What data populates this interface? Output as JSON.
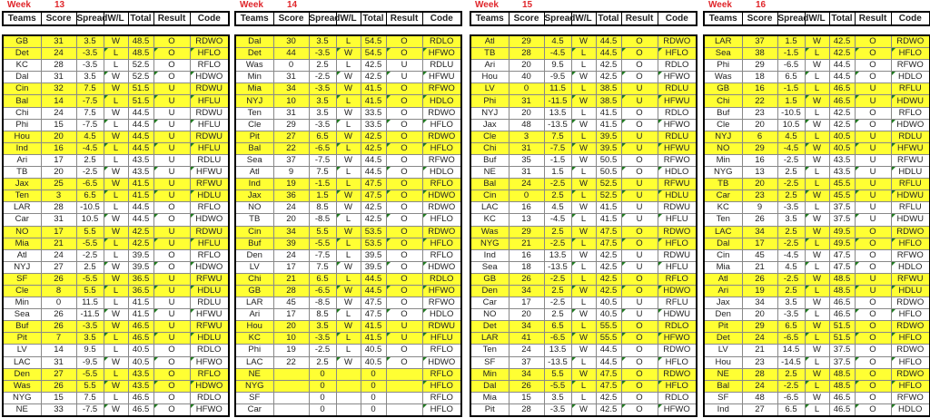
{
  "columns": [
    "Teams",
    "Score",
    "Spread",
    "W/L",
    "Total",
    "Result",
    "Code"
  ],
  "week_label": "Week",
  "highlight_color": "#ffff33",
  "header_label_color": "#e0262b",
  "weeks": [
    {
      "number": "13",
      "rows": [
        [
          "GB",
          "31",
          "3.5",
          "W",
          "48.5",
          "O",
          "RDWO"
        ],
        [
          "Det",
          "24",
          "-3.5",
          "L",
          "48.5",
          "O",
          "HFLO"
        ],
        [
          "KC",
          "28",
          "-3.5",
          "L",
          "52.5",
          "O",
          "RFLO"
        ],
        [
          "Dal",
          "31",
          "3.5",
          "W",
          "52.5",
          "O",
          "HDWO"
        ],
        [
          "Cin",
          "32",
          "7.5",
          "W",
          "51.5",
          "U",
          "RDWU"
        ],
        [
          "Bal",
          "14",
          "-7.5",
          "L",
          "51.5",
          "U",
          "HFLU"
        ],
        [
          "Chi",
          "24",
          "7.5",
          "W",
          "44.5",
          "U",
          "RDWU"
        ],
        [
          "Phi",
          "15",
          "-7.5",
          "L",
          "44.5",
          "U",
          "HFLU"
        ],
        [
          "Hou",
          "20",
          "4.5",
          "W",
          "44.5",
          "U",
          "RDWU"
        ],
        [
          "Ind",
          "16",
          "-4.5",
          "L",
          "44.5",
          "U",
          "HFLU"
        ],
        [
          "Ari",
          "17",
          "2.5",
          "L",
          "43.5",
          "U",
          "RDLU"
        ],
        [
          "TB",
          "20",
          "-2.5",
          "W",
          "43.5",
          "U",
          "HFWU"
        ],
        [
          "Jax",
          "25",
          "-6.5",
          "W",
          "41.5",
          "U",
          "RFWU"
        ],
        [
          "Ten",
          "3",
          "6.5",
          "L",
          "41.5",
          "U",
          "HDLU"
        ],
        [
          "LAR",
          "28",
          "-10.5",
          "L",
          "44.5",
          "O",
          "RFLO"
        ],
        [
          "Car",
          "31",
          "10.5",
          "W",
          "44.5",
          "O",
          "HDWO"
        ],
        [
          "NO",
          "17",
          "5.5",
          "W",
          "42.5",
          "U",
          "RDWU"
        ],
        [
          "Mia",
          "21",
          "-5.5",
          "L",
          "42.5",
          "U",
          "HFLU"
        ],
        [
          "Atl",
          "24",
          "-2.5",
          "L",
          "39.5",
          "O",
          "RFLO"
        ],
        [
          "NYJ",
          "27",
          "2.5",
          "W",
          "39.5",
          "O",
          "HDWO"
        ],
        [
          "SF",
          "26",
          "-5.5",
          "W",
          "36.5",
          "U",
          "RFWU"
        ],
        [
          "Cle",
          "8",
          "5.5",
          "L",
          "36.5",
          "U",
          "HDLU"
        ],
        [
          "Min",
          "0",
          "11.5",
          "L",
          "41.5",
          "U",
          "RDLU"
        ],
        [
          "Sea",
          "26",
          "-11.5",
          "W",
          "41.5",
          "U",
          "HFWU"
        ],
        [
          "Buf",
          "26",
          "-3.5",
          "W",
          "46.5",
          "U",
          "RFWU"
        ],
        [
          "Pit",
          "7",
          "3.5",
          "L",
          "46.5",
          "U",
          "HDLU"
        ],
        [
          "LV",
          "14",
          "9.5",
          "L",
          "40.5",
          "O",
          "RDLO"
        ],
        [
          "LAC",
          "31",
          "-9.5",
          "W",
          "40.5",
          "O",
          "HFWO"
        ],
        [
          "Den",
          "27",
          "-5.5",
          "L",
          "43.5",
          "O",
          "RFLO"
        ],
        [
          "Was",
          "26",
          "5.5",
          "W",
          "43.5",
          "O",
          "HDWO"
        ],
        [
          "NYG",
          "15",
          "7.5",
          "L",
          "46.5",
          "O",
          "RDLO"
        ],
        [
          "NE",
          "33",
          "-7.5",
          "W",
          "46.5",
          "O",
          "HFWO"
        ]
      ]
    },
    {
      "number": "14",
      "rows": [
        [
          "Dal",
          "30",
          "3.5",
          "L",
          "54.5",
          "O",
          "RDLO"
        ],
        [
          "Det",
          "44",
          "-3.5",
          "W",
          "54.5",
          "O",
          "HFWO"
        ],
        [
          "Was",
          "0",
          "2.5",
          "L",
          "42.5",
          "U",
          "RDLU"
        ],
        [
          "Min",
          "31",
          "-2.5",
          "W",
          "42.5",
          "U",
          "HFWU"
        ],
        [
          "Mia",
          "34",
          "-3.5",
          "W",
          "41.5",
          "O",
          "RFWO"
        ],
        [
          "NYJ",
          "10",
          "3.5",
          "L",
          "41.5",
          "O",
          "HDLO"
        ],
        [
          "Ten",
          "31",
          "3.5",
          "W",
          "33.5",
          "O",
          "RDWO"
        ],
        [
          "Cle",
          "29",
          "-3.5",
          "L",
          "33.5",
          "O",
          "HFLO"
        ],
        [
          "Pit",
          "27",
          "6.5",
          "W",
          "42.5",
          "O",
          "RDWO"
        ],
        [
          "Bal",
          "22",
          "-6.5",
          "L",
          "42.5",
          "O",
          "HFLO"
        ],
        [
          "Sea",
          "37",
          "-7.5",
          "W",
          "44.5",
          "O",
          "RFWO"
        ],
        [
          "Atl",
          "9",
          "7.5",
          "L",
          "44.5",
          "O",
          "HDLO"
        ],
        [
          "Ind",
          "19",
          "-1.5",
          "L",
          "47.5",
          "O",
          "RFLO"
        ],
        [
          "Jax",
          "36",
          "1.5",
          "W",
          "47.5",
          "O",
          "HDWO"
        ],
        [
          "NO",
          "24",
          "8.5",
          "W",
          "42.5",
          "O",
          "RDWO"
        ],
        [
          "TB",
          "20",
          "-8.5",
          "L",
          "42.5",
          "O",
          "HFLO"
        ],
        [
          "Cin",
          "34",
          "5.5",
          "W",
          "53.5",
          "O",
          "RDWO"
        ],
        [
          "Buf",
          "39",
          "-5.5",
          "L",
          "53.5",
          "O",
          "HFLO"
        ],
        [
          "Den",
          "24",
          "-7.5",
          "L",
          "39.5",
          "O",
          "RFLO"
        ],
        [
          "LV",
          "17",
          "7.5",
          "W",
          "39.5",
          "O",
          "HDWO"
        ],
        [
          "Chi",
          "21",
          "6.5",
          "L",
          "44.5",
          "O",
          "RDLO"
        ],
        [
          "GB",
          "28",
          "-6.5",
          "W",
          "44.5",
          "O",
          "HFWO"
        ],
        [
          "LAR",
          "45",
          "-8.5",
          "W",
          "47.5",
          "O",
          "RFWO"
        ],
        [
          "Ari",
          "17",
          "8.5",
          "L",
          "47.5",
          "O",
          "HDLO"
        ],
        [
          "Hou",
          "20",
          "3.5",
          "W",
          "41.5",
          "U",
          "RDWU"
        ],
        [
          "KC",
          "10",
          "-3.5",
          "L",
          "41.5",
          "U",
          "HFLU"
        ],
        [
          "Phi",
          "19",
          "-2.5",
          "L",
          "40.5",
          "O",
          "RFLO"
        ],
        [
          "LAC",
          "22",
          "2.5",
          "W",
          "40.5",
          "O",
          "HDWO"
        ],
        [
          "NE",
          "",
          "0",
          "",
          "0",
          "",
          "RFLO"
        ],
        [
          "NYG",
          "",
          "0",
          "",
          "0",
          "",
          "HFLO"
        ],
        [
          "SF",
          "",
          "0",
          "",
          "0",
          "",
          "RFLO"
        ],
        [
          "Car",
          "",
          "0",
          "",
          "0",
          "",
          "HFLO"
        ]
      ]
    },
    {
      "number": "15",
      "rows": [
        [
          "Atl",
          "29",
          "4.5",
          "W",
          "44.5",
          "O",
          "RDWO"
        ],
        [
          "TB",
          "28",
          "-4.5",
          "L",
          "44.5",
          "O",
          "HFLO"
        ],
        [
          "Ari",
          "20",
          "9.5",
          "L",
          "42.5",
          "O",
          "RDLO"
        ],
        [
          "Hou",
          "40",
          "-9.5",
          "W",
          "42.5",
          "O",
          "HFWO"
        ],
        [
          "LV",
          "0",
          "11.5",
          "L",
          "38.5",
          "U",
          "RDLU"
        ],
        [
          "Phi",
          "31",
          "-11.5",
          "W",
          "38.5",
          "U",
          "HFWU"
        ],
        [
          "NYJ",
          "20",
          "13.5",
          "L",
          "41.5",
          "O",
          "RDLO"
        ],
        [
          "Jax",
          "48",
          "-13.5",
          "W",
          "41.5",
          "O",
          "HFWO"
        ],
        [
          "Cle",
          "3",
          "7.5",
          "L",
          "39.5",
          "U",
          "RDLU"
        ],
        [
          "Chi",
          "31",
          "-7.5",
          "W",
          "39.5",
          "U",
          "HFWU"
        ],
        [
          "Buf",
          "35",
          "-1.5",
          "W",
          "50.5",
          "O",
          "RFWO"
        ],
        [
          "NE",
          "31",
          "1.5",
          "L",
          "50.5",
          "O",
          "HDLO"
        ],
        [
          "Bal",
          "24",
          "-2.5",
          "W",
          "52.5",
          "U",
          "RFWU"
        ],
        [
          "Cin",
          "0",
          "2.5",
          "L",
          "52.5",
          "U",
          "HDLU"
        ],
        [
          "LAC",
          "16",
          "4.5",
          "W",
          "41.5",
          "U",
          "RDWU"
        ],
        [
          "KC",
          "13",
          "-4.5",
          "L",
          "41.5",
          "U",
          "HFLU"
        ],
        [
          "Was",
          "29",
          "2.5",
          "W",
          "47.5",
          "O",
          "RDWO"
        ],
        [
          "NYG",
          "21",
          "-2.5",
          "L",
          "47.5",
          "O",
          "HFLO"
        ],
        [
          "Ind",
          "16",
          "13.5",
          "W",
          "42.5",
          "U",
          "RDWU"
        ],
        [
          "Sea",
          "18",
          "-13.5",
          "L",
          "42.5",
          "U",
          "HFLU"
        ],
        [
          "GB",
          "26",
          "-2.5",
          "L",
          "42.5",
          "O",
          "RFLO"
        ],
        [
          "Den",
          "34",
          "2.5",
          "W",
          "42.5",
          "O",
          "HDWO"
        ],
        [
          "Car",
          "17",
          "-2.5",
          "L",
          "40.5",
          "U",
          "RFLU"
        ],
        [
          "NO",
          "20",
          "2.5",
          "W",
          "40.5",
          "U",
          "HDWU"
        ],
        [
          "Det",
          "34",
          "6.5",
          "L",
          "55.5",
          "O",
          "RDLO"
        ],
        [
          "LAR",
          "41",
          "-6.5",
          "W",
          "55.5",
          "O",
          "HFWO"
        ],
        [
          "Ten",
          "24",
          "13.5",
          "W",
          "44.5",
          "O",
          "RDWO"
        ],
        [
          "SF",
          "37",
          "-13.5",
          "L",
          "44.5",
          "O",
          "HFLO"
        ],
        [
          "Min",
          "34",
          "5.5",
          "W",
          "47.5",
          "O",
          "RDWO"
        ],
        [
          "Dal",
          "26",
          "-5.5",
          "L",
          "47.5",
          "O",
          "HFLO"
        ],
        [
          "Mia",
          "15",
          "3.5",
          "L",
          "42.5",
          "O",
          "RDLO"
        ],
        [
          "Pit",
          "28",
          "-3.5",
          "W",
          "42.5",
          "O",
          "HFWO"
        ]
      ]
    },
    {
      "number": "16",
      "rows": [
        [
          "LAR",
          "37",
          "1.5",
          "W",
          "42.5",
          "O",
          "RDWO"
        ],
        [
          "Sea",
          "38",
          "-1.5",
          "L",
          "42.5",
          "O",
          "HFLO"
        ],
        [
          "Phi",
          "29",
          "-6.5",
          "W",
          "44.5",
          "O",
          "RFWO"
        ],
        [
          "Was",
          "18",
          "6.5",
          "L",
          "44.5",
          "O",
          "HDLO"
        ],
        [
          "GB",
          "16",
          "-1.5",
          "L",
          "46.5",
          "U",
          "RFLU"
        ],
        [
          "Chi",
          "22",
          "1.5",
          "W",
          "46.5",
          "U",
          "HDWU"
        ],
        [
          "Buf",
          "23",
          "-10.5",
          "L",
          "42.5",
          "O",
          "RFLO"
        ],
        [
          "Cle",
          "20",
          "10.5",
          "W",
          "42.5",
          "O",
          "HDWO"
        ],
        [
          "NYJ",
          "6",
          "4.5",
          "L",
          "40.5",
          "U",
          "RDLU"
        ],
        [
          "NO",
          "29",
          "-4.5",
          "W",
          "40.5",
          "U",
          "HFWU"
        ],
        [
          "Min",
          "16",
          "-2.5",
          "W",
          "43.5",
          "U",
          "RFWU"
        ],
        [
          "NYG",
          "13",
          "2.5",
          "L",
          "43.5",
          "U",
          "HDLU"
        ],
        [
          "TB",
          "20",
          "-2.5",
          "L",
          "45.5",
          "U",
          "RFLU"
        ],
        [
          "Car",
          "23",
          "2.5",
          "W",
          "45.5",
          "U",
          "HDWU"
        ],
        [
          "KC",
          "9",
          "-3.5",
          "L",
          "37.5",
          "U",
          "RFLU"
        ],
        [
          "Ten",
          "26",
          "3.5",
          "W",
          "37.5",
          "U",
          "HDWU"
        ],
        [
          "LAC",
          "34",
          "2.5",
          "W",
          "49.5",
          "O",
          "RDWO"
        ],
        [
          "Dal",
          "17",
          "-2.5",
          "L",
          "49.5",
          "O",
          "HFLO"
        ],
        [
          "Cin",
          "45",
          "-4.5",
          "W",
          "47.5",
          "O",
          "RFWO"
        ],
        [
          "Mia",
          "21",
          "4.5",
          "L",
          "47.5",
          "O",
          "HDLO"
        ],
        [
          "Atl",
          "26",
          "-2.5",
          "W",
          "48.5",
          "U",
          "RFWU"
        ],
        [
          "Ari",
          "19",
          "2.5",
          "L",
          "48.5",
          "U",
          "HDLU"
        ],
        [
          "Jax",
          "34",
          "3.5",
          "W",
          "46.5",
          "O",
          "RDWO"
        ],
        [
          "Den",
          "20",
          "-3.5",
          "L",
          "46.5",
          "O",
          "HFLO"
        ],
        [
          "Pit",
          "29",
          "6.5",
          "W",
          "51.5",
          "O",
          "RDWO"
        ],
        [
          "Det",
          "24",
          "-6.5",
          "L",
          "51.5",
          "O",
          "HFLO"
        ],
        [
          "LV",
          "21",
          "14.5",
          "W",
          "37.5",
          "O",
          "RDWO"
        ],
        [
          "Hou",
          "23",
          "-14.5",
          "L",
          "37.5",
          "O",
          "HFLO"
        ],
        [
          "NE",
          "28",
          "2.5",
          "W",
          "48.5",
          "O",
          "RDWO"
        ],
        [
          "Bal",
          "24",
          "-2.5",
          "L",
          "48.5",
          "O",
          "HFLO"
        ],
        [
          "SF",
          "48",
          "-6.5",
          "W",
          "46.5",
          "O",
          "RFWO"
        ],
        [
          "Ind",
          "27",
          "6.5",
          "L",
          "46.5",
          "O",
          "HDLO"
        ]
      ]
    }
  ]
}
